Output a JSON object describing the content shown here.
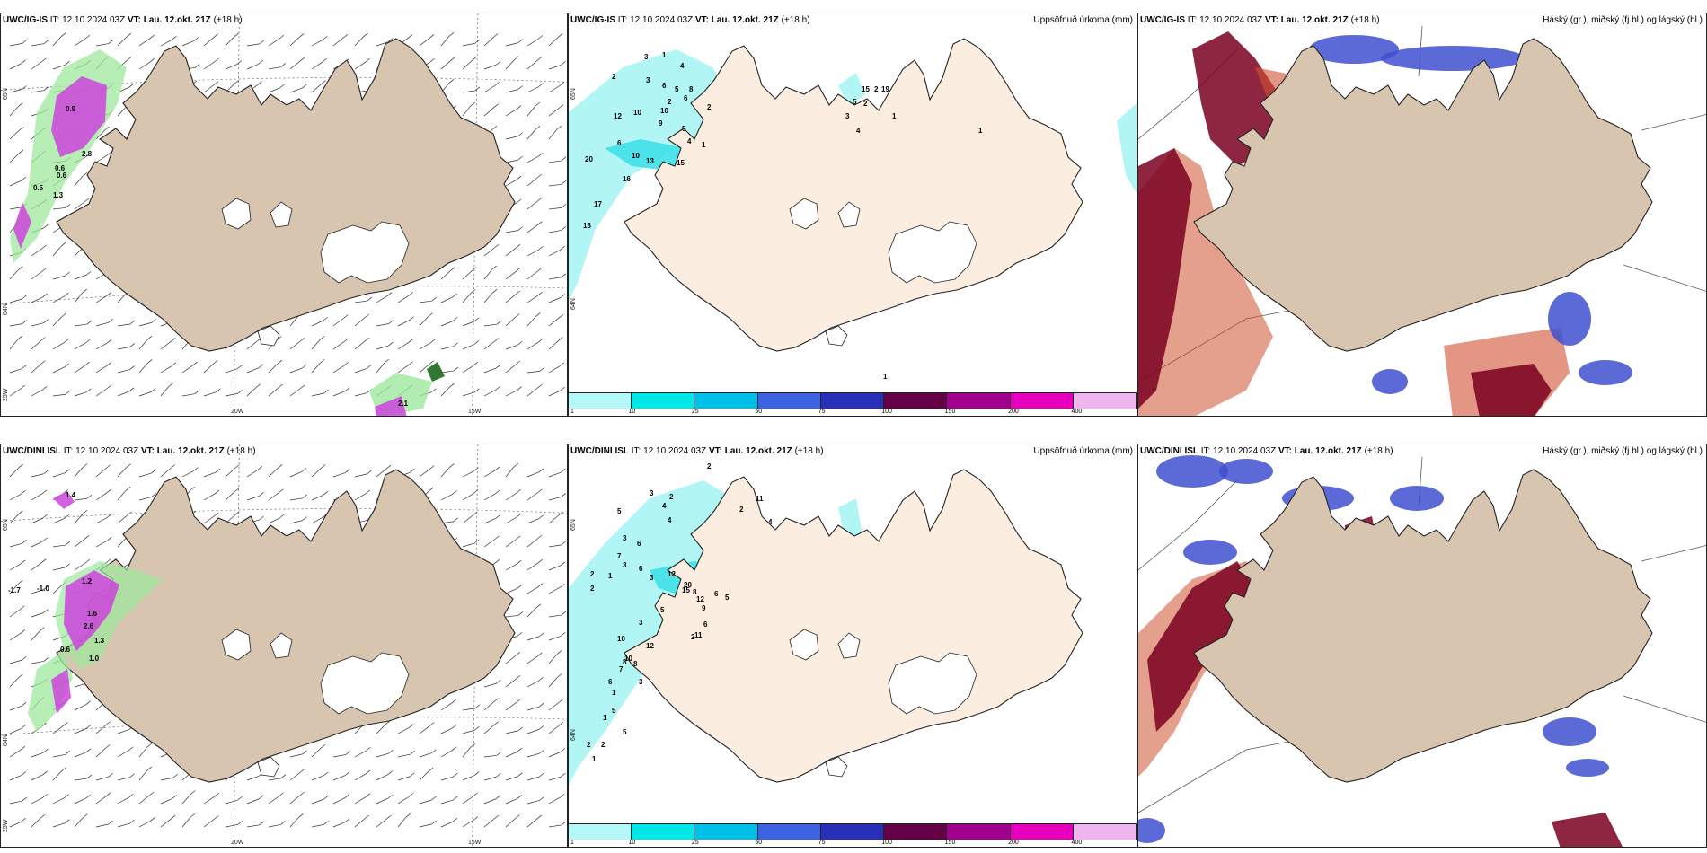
{
  "rows": [
    {
      "model": "UWC/IG-IS",
      "panels": [
        {
          "it_label": "IT:",
          "it_value": "12.10.2024 03Z",
          "vt_label": "VT:",
          "vt_value": "Lau. 12.okt. 21Z",
          "lead": "(+18 h)",
          "right_title": ""
        },
        {
          "it_label": "IT:",
          "it_value": "12.10.2024 03Z",
          "vt_label": "VT:",
          "vt_value": "Lau. 12.okt. 21Z",
          "lead": "(+18 h)",
          "right_title": "Uppsöfnuð úrkoma (mm)"
        },
        {
          "it_label": "IT:",
          "it_value": "12.10.2024 03Z",
          "vt_label": "VT:",
          "vt_value": "Lau. 12.okt. 21Z",
          "lead": "(+18 h)",
          "right_title": "Háský (gr.), miðský (fj.bl.) og lágský (bl.)"
        }
      ],
      "wind_labels": [
        "0.9",
        "2.8",
        "0.5",
        "0.6",
        "1.3",
        "0.6",
        "2.1"
      ],
      "precip_labels": [
        "3",
        "1",
        "2",
        "4",
        "3",
        "6",
        "5",
        "2",
        "8",
        "6",
        "10",
        "2",
        "10",
        "9",
        "5",
        "4",
        "1",
        "6",
        "10",
        "13",
        "15",
        "16",
        "17",
        "18",
        "20",
        "12",
        "19",
        "15",
        "5",
        "2",
        "3",
        "4",
        "1",
        "1",
        "2",
        "1"
      ],
      "lon_ticks": [
        "20W",
        "15W"
      ],
      "lat_ticks": [
        "65N",
        "64N",
        "25W"
      ]
    },
    {
      "model": "UWC/DINI ISL",
      "panels": [
        {
          "it_label": "IT:",
          "it_value": "12.10.2024 03Z",
          "vt_label": "VT:",
          "vt_value": "Lau. 12.okt. 21Z",
          "lead": "(+18 h)",
          "right_title": ""
        },
        {
          "it_label": "IT:",
          "it_value": "12.10.2024 03Z",
          "vt_label": "VT:",
          "vt_value": "Lau. 12.okt. 21Z",
          "lead": "(+18 h)",
          "right_title": "Uppsöfnuð úrkoma (mm)"
        },
        {
          "it_label": "IT:",
          "it_value": "12.10.2024 03Z",
          "vt_label": "VT:",
          "vt_value": "Lau. 12.okt. 21Z",
          "lead": "(+18 h)",
          "right_title": "Háský (gr.), miðský (fj.bl.) og lágský (bl.)"
        }
      ],
      "wind_labels": [
        "1.4",
        "-1.7",
        "-1.0",
        "1.2",
        "1.6",
        "0.6",
        "1.3",
        "2.6",
        "1.0"
      ],
      "precip_labels": [
        "2",
        "3",
        "4",
        "2",
        "2",
        "11",
        "5",
        "4",
        "3",
        "6",
        "7",
        "2",
        "2",
        "1",
        "3",
        "6",
        "3",
        "12",
        "8",
        "6",
        "5",
        "5",
        "3",
        "10",
        "12",
        "8",
        "6",
        "1",
        "1",
        "2",
        "1",
        "5",
        "20",
        "15",
        "12",
        "9",
        "6",
        "11",
        "10",
        "7",
        "8",
        "3",
        "2",
        "5",
        "2",
        "4"
      ],
      "lon_ticks": [
        "20W",
        "15W"
      ],
      "lat_ticks": [
        "65N",
        "64N",
        "25W"
      ]
    }
  ],
  "scale": {
    "ticks": [
      "1",
      "10",
      "25",
      "50",
      "75",
      "100",
      "150",
      "200",
      "400"
    ],
    "colors": [
      "#b4f8f8",
      "#00e8e8",
      "#00c0e8",
      "#3c64e0",
      "#2830b8",
      "#640046",
      "#a0008c",
      "#e600be",
      "#f0b4f0"
    ]
  },
  "colors": {
    "land": "#d8c5b0",
    "land_light": "#fbeee0",
    "coast": "#222222",
    "precip_light": "#a8f4f4",
    "precip_mid": "#40e0e8",
    "wind_green": "#9ee89e",
    "wind_purple": "#cc44dd",
    "cloud_high": "#7a0020",
    "cloud_mid": "#d05030",
    "cloud_low": "#4050d0"
  }
}
